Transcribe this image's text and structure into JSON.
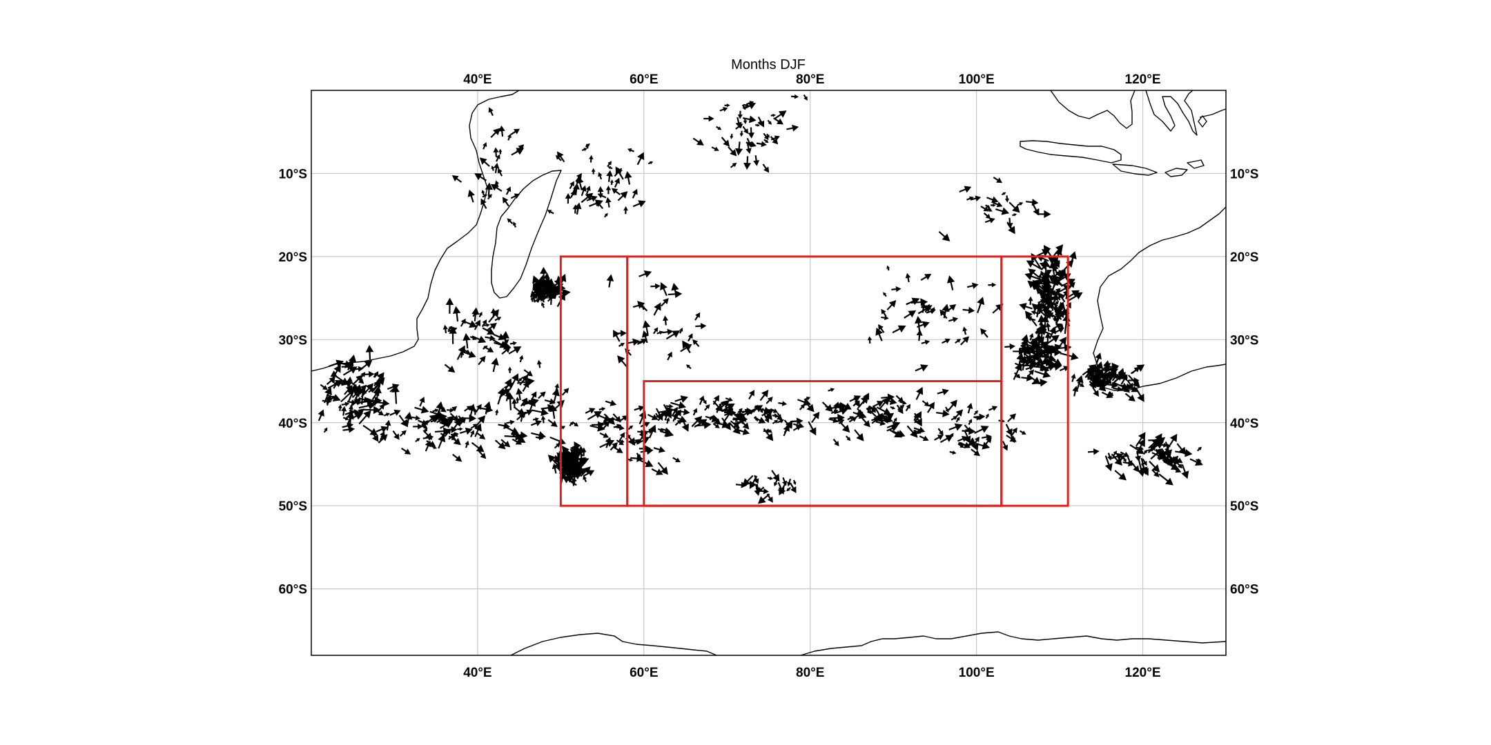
{
  "title": "Months DJF",
  "map": {
    "lon_range": [
      20,
      130
    ],
    "lat_range": [
      -68,
      0
    ],
    "lon_ticks": [
      {
        "value": 40,
        "label": "40°E"
      },
      {
        "value": 60,
        "label": "60°E"
      },
      {
        "value": 80,
        "label": "80°E"
      },
      {
        "value": 100,
        "label": "100°E"
      },
      {
        "value": 120,
        "label": "120°E"
      }
    ],
    "lat_ticks": [
      {
        "value": -10,
        "label": "10°S"
      },
      {
        "value": -20,
        "label": "20°S"
      },
      {
        "value": -30,
        "label": "30°S"
      },
      {
        "value": -40,
        "label": "40°S"
      },
      {
        "value": -50,
        "label": "50°S"
      },
      {
        "value": -60,
        "label": "60°S"
      }
    ],
    "grid": true,
    "box_color": "#e0201b",
    "boxes": [
      {
        "name": "western-box",
        "lon": [
          50,
          58
        ],
        "lat": [
          -50,
          -20
        ]
      },
      {
        "name": "central-box",
        "lon": [
          58,
          103
        ],
        "lat": [
          -50,
          -20
        ]
      },
      {
        "name": "central-inner-box",
        "lon": [
          60,
          103
        ],
        "lat": [
          -50,
          -35
        ]
      },
      {
        "name": "eastern-box",
        "lon": [
          103,
          111
        ],
        "lat": [
          -50,
          -20
        ]
      }
    ],
    "vector_color": "#000000",
    "vector_clusters": [
      {
        "lon": 25,
        "lat": -37,
        "spread": [
          5,
          4
        ],
        "count": 90,
        "dir": 25,
        "len": 1.8
      },
      {
        "lon": 36,
        "lat": -41,
        "spread": [
          6,
          3
        ],
        "count": 70,
        "dir": 10,
        "len": 1.6
      },
      {
        "lon": 40,
        "lat": -30,
        "spread": [
          5,
          4
        ],
        "count": 40,
        "dir": 30,
        "len": 1.7
      },
      {
        "lon": 48,
        "lat": -24.5,
        "spread": [
          1.5,
          1.5
        ],
        "count": 70,
        "dir": 60,
        "len": 1.5
      },
      {
        "lon": 51,
        "lat": -45.5,
        "spread": [
          1.5,
          1.8
        ],
        "count": 110,
        "dir": 90,
        "len": 1.6
      },
      {
        "lon": 46,
        "lat": -38,
        "spread": [
          5,
          4
        ],
        "count": 60,
        "dir": 30,
        "len": 1.7
      },
      {
        "lon": 58,
        "lat": -42,
        "spread": [
          5,
          4
        ],
        "count": 50,
        "dir": 10,
        "len": 1.6
      },
      {
        "lon": 70,
        "lat": -39,
        "spread": [
          9,
          2
        ],
        "count": 90,
        "dir": 5,
        "len": 1.5
      },
      {
        "lon": 88,
        "lat": -39,
        "spread": [
          9,
          2.5
        ],
        "count": 80,
        "dir": 5,
        "len": 1.5
      },
      {
        "lon": 100,
        "lat": -41,
        "spread": [
          5,
          2.5
        ],
        "count": 40,
        "dir": 0,
        "len": 1.5
      },
      {
        "lon": 115,
        "lat": -35,
        "spread": [
          4,
          1.5
        ],
        "count": 80,
        "dir": 10,
        "len": 1.7
      },
      {
        "lon": 121,
        "lat": -44,
        "spread": [
          6,
          2
        ],
        "count": 60,
        "dir": -10,
        "len": 1.7
      },
      {
        "lon": 109,
        "lat": -25,
        "spread": [
          2,
          5
        ],
        "count": 120,
        "dir": 95,
        "len": 1.9
      },
      {
        "lon": 107,
        "lat": -32,
        "spread": [
          3,
          3
        ],
        "count": 80,
        "dir": 20,
        "len": 1.8
      },
      {
        "lon": 94,
        "lat": -27,
        "spread": [
          6,
          5
        ],
        "count": 40,
        "dir": 60,
        "len": 1.6
      },
      {
        "lon": 102,
        "lat": -14,
        "spread": [
          7,
          3
        ],
        "count": 25,
        "dir": -30,
        "len": 1.4
      },
      {
        "lon": 62,
        "lat": -28,
        "spread": [
          6,
          6
        ],
        "count": 35,
        "dir": 70,
        "len": 1.5
      },
      {
        "lon": 73,
        "lat": -5,
        "spread": [
          6,
          4
        ],
        "count": 45,
        "dir": -30,
        "len": 1.3
      },
      {
        "lon": 55,
        "lat": -12,
        "spread": [
          6,
          5
        ],
        "count": 45,
        "dir": 90,
        "len": 1.4
      },
      {
        "lon": 42,
        "lat": -10,
        "spread": [
          3,
          6
        ],
        "count": 30,
        "dir": 80,
        "len": 1.4
      },
      {
        "lon": 75,
        "lat": -47.5,
        "spread": [
          4,
          2
        ],
        "count": 20,
        "dir": -70,
        "len": 1.5
      }
    ]
  }
}
